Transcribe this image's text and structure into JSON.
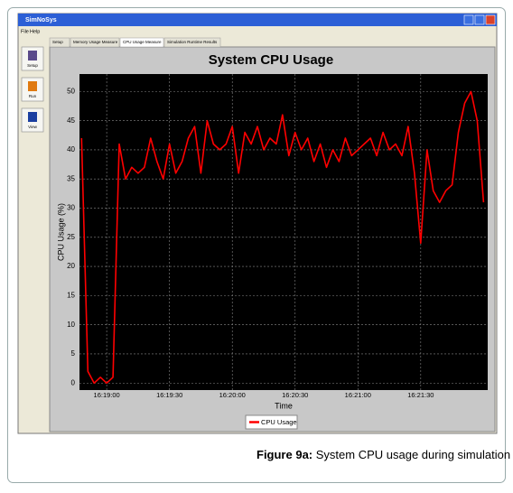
{
  "window": {
    "title": "SimNoSys",
    "menu": [
      "File",
      "Help"
    ],
    "tabs": [
      "Setup",
      "Memory Usage Measure",
      "CPU Usage Measure",
      "Simulation Runtime Results"
    ],
    "sidebar": [
      "Setup",
      "Run",
      "View"
    ]
  },
  "chart_data": {
    "type": "line",
    "title": "System CPU Usage",
    "x_label": "Time",
    "y_label": "CPU Usage (%)",
    "x": [
      "16:18:48",
      "16:18:51",
      "16:18:54",
      "16:18:57",
      "16:19:00",
      "16:19:03",
      "16:19:06",
      "16:19:09",
      "16:19:12",
      "16:19:15",
      "16:19:18",
      "16:19:21",
      "16:19:24",
      "16:19:27",
      "16:19:30",
      "16:19:33",
      "16:19:36",
      "16:19:39",
      "16:19:42",
      "16:19:45",
      "16:19:48",
      "16:19:51",
      "16:19:54",
      "16:19:57",
      "16:20:00",
      "16:20:03",
      "16:20:06",
      "16:20:09",
      "16:20:12",
      "16:20:15",
      "16:20:18",
      "16:20:21",
      "16:20:24",
      "16:20:27",
      "16:20:30",
      "16:20:33",
      "16:20:36",
      "16:20:39",
      "16:20:42",
      "16:20:45",
      "16:20:48",
      "16:20:51",
      "16:20:54",
      "16:20:57",
      "16:21:00",
      "16:21:03",
      "16:21:06",
      "16:21:09",
      "16:21:12",
      "16:21:15",
      "16:21:18",
      "16:21:21",
      "16:21:24",
      "16:21:27",
      "16:21:30",
      "16:21:33",
      "16:21:36",
      "16:21:39",
      "16:21:42",
      "16:21:45",
      "16:21:48",
      "16:21:51",
      "16:21:54",
      "16:21:57",
      "16:22:00"
    ],
    "series": [
      {
        "name": "CPU Usage",
        "color": "#ff0000",
        "values": [
          42,
          2,
          0,
          1,
          0,
          1,
          41,
          35,
          37,
          36,
          37,
          42,
          38,
          35,
          41,
          36,
          38,
          42,
          44,
          36,
          45,
          41,
          40,
          41,
          44,
          36,
          43,
          41,
          44,
          40,
          42,
          41,
          46,
          39,
          43,
          40,
          42,
          38,
          41,
          37,
          40,
          38,
          42,
          39,
          40,
          41,
          42,
          39,
          43,
          40,
          41,
          39,
          44,
          36,
          24,
          40,
          33,
          31,
          33,
          34,
          43,
          48,
          50,
          45,
          31
        ]
      }
    ],
    "xlim": [
      "16:18:47",
      "16:22:02"
    ],
    "xticks": [
      "16:19:00",
      "16:19:30",
      "16:20:00",
      "16:20:30",
      "16:21:00",
      "16:21:30"
    ],
    "ylim": [
      -1.2,
      53
    ],
    "yticks": [
      0,
      5,
      10,
      15,
      20,
      25,
      30,
      35,
      40,
      45,
      50
    ],
    "grid": true
  },
  "caption": {
    "label": "Figure 9a:",
    "text": "System CPU usage during simulation run."
  }
}
